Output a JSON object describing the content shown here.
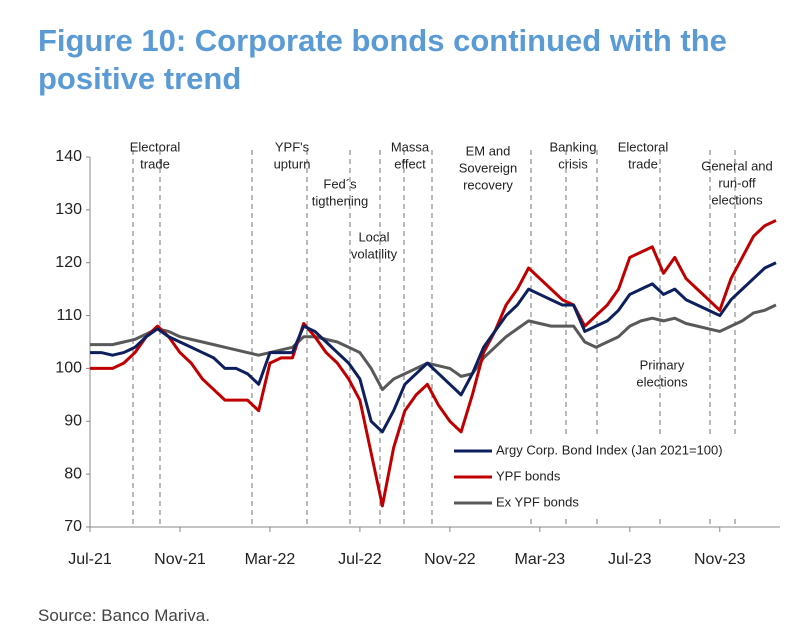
{
  "chart_data": {
    "type": "line",
    "title": "Figure 10: Corporate bonds continued with the positive trend",
    "source": "Source: Banco Mariva.",
    "categories": [
      "Jul-21",
      null,
      null,
      null,
      null,
      null,
      null,
      null,
      "Nov-21",
      null,
      null,
      null,
      null,
      null,
      null,
      null,
      "Mar-22",
      null,
      null,
      null,
      null,
      null,
      null,
      null,
      "Jul-22",
      null,
      null,
      null,
      null,
      null,
      null,
      null,
      "Nov-22",
      null,
      null,
      null,
      null,
      null,
      null,
      null,
      "Mar-23",
      null,
      null,
      null,
      null,
      null,
      null,
      null,
      "Jul-23",
      null,
      null,
      null,
      null,
      null,
      null,
      null,
      "Nov-23",
      null,
      null,
      null,
      null,
      null
    ],
    "series": [
      {
        "name": "Argy Corp. Bond Index (Jan 2021=100)",
        "color": "#0d1f5c",
        "values": [
          103,
          103,
          102.5,
          103,
          104,
          106,
          107.5,
          106,
          105,
          104,
          103,
          102,
          100,
          100,
          99,
          97,
          103,
          103,
          103,
          108,
          107,
          105,
          103,
          101,
          98,
          90,
          88,
          92,
          97,
          99,
          101,
          99,
          97,
          95,
          99,
          104,
          107,
          110,
          112,
          115,
          114,
          113,
          112,
          112,
          107,
          108,
          109,
          111,
          114,
          115,
          116,
          114,
          115,
          113,
          112,
          111,
          110,
          113,
          115,
          117,
          119,
          120
        ]
      },
      {
        "name": "YPF bonds",
        "color": "#c00000",
        "values": [
          100,
          100,
          100,
          101,
          103,
          106,
          108,
          106,
          103,
          101,
          98,
          96,
          94,
          94,
          94,
          92,
          101,
          102,
          102,
          108.5,
          106,
          103,
          101,
          98,
          94,
          84,
          74,
          85,
          92,
          95,
          97,
          93,
          90,
          88,
          95,
          103,
          107,
          112,
          115,
          119,
          117,
          115,
          113,
          112,
          108,
          110,
          112,
          115,
          121,
          122,
          123,
          118,
          121,
          117,
          115,
          113,
          111,
          117,
          121,
          125,
          127,
          128
        ]
      },
      {
        "name": "Ex YPF bonds",
        "color": "#595959",
        "values": [
          104.5,
          104.5,
          104.5,
          105,
          105.5,
          106.5,
          107.5,
          107,
          106,
          105.5,
          105,
          104.5,
          104,
          103.5,
          103,
          102.5,
          103,
          103.5,
          104,
          106,
          106,
          105.5,
          105,
          104,
          103,
          100,
          96,
          98,
          99,
          100,
          101,
          100.5,
          100,
          98.5,
          99,
          102,
          104,
          106,
          107.5,
          109,
          108.5,
          108,
          108,
          108,
          105,
          104,
          105,
          106,
          108,
          109,
          109.5,
          109,
          109.5,
          108.5,
          108,
          107.5,
          107,
          108,
          109,
          110.5,
          111,
          112
        ]
      }
    ],
    "ylim": [
      70,
      140
    ],
    "yticks": [
      70,
      80,
      90,
      100,
      110,
      120,
      130,
      140
    ],
    "grid": false,
    "legend": "lower right",
    "annotations": [
      [
        "Electoral",
        "trade"
      ],
      [
        "YPF's",
        "upturn"
      ],
      [
        "Fed´s",
        "tigthening"
      ],
      [
        "Massa",
        "effect"
      ],
      [
        "Local",
        "volatility"
      ],
      [
        "EM and",
        "Sovereign",
        "recovery"
      ],
      [
        "Banking",
        "crisis"
      ],
      [
        "Electoral",
        "trade"
      ],
      [
        "General and",
        "run-off",
        "elections"
      ],
      [
        "Primary",
        "elections"
      ]
    ]
  }
}
